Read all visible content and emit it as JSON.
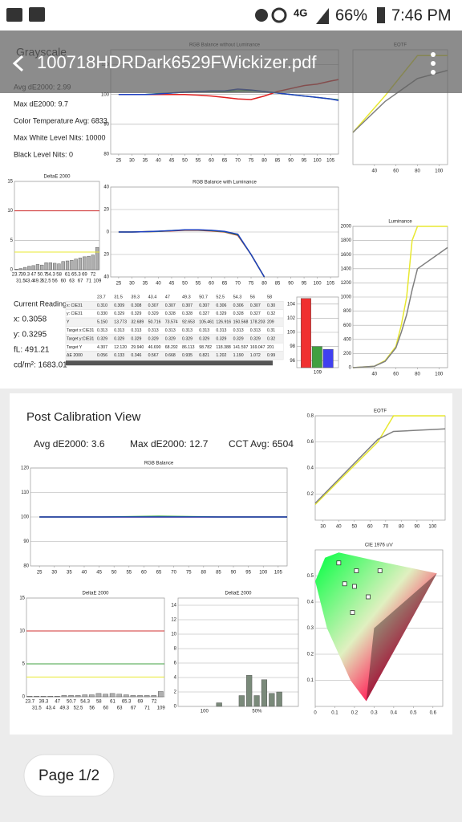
{
  "status": {
    "network": "4G",
    "battery": "66%",
    "time": "7:46 PM"
  },
  "toolbar": {
    "title": "100718HDRDark6529FWickizer.pdf"
  },
  "page1": {
    "title": "Grayscale",
    "stats": [
      "Avg dE2000: 2.99",
      "Max dE2000: 9.7",
      "Color Temperature Avg: 6833",
      "Max White Level Nits: 10000",
      "Black Level Nits: 0"
    ],
    "reading": [
      "Current Reading",
      "x: 0.3058",
      "y: 0.3295",
      "fL: 491.21",
      "cd/m²: 1683.01"
    ],
    "table": {
      "header": [
        "23.7",
        "31.5",
        "39.3",
        "43.4",
        "47",
        "49.3",
        "50.7",
        "52.5",
        "54.3",
        "56",
        "58"
      ],
      "rows": [
        [
          "x: CIE31",
          "0.310",
          "0.309",
          "0.308",
          "0.307",
          "0.307",
          "0.307",
          "0.307",
          "0.306",
          "0.306",
          "0.307",
          "0.30"
        ],
        [
          "y: CIE31",
          "0.330",
          "0.329",
          "0.329",
          "0.329",
          "0.328",
          "0.328",
          "0.327",
          "0.329",
          "0.328",
          "0.327",
          "0.32"
        ],
        [
          "Y",
          "5.150",
          "13.773",
          "32.689",
          "50.716",
          "73.574",
          "92.653",
          "105.461",
          "126.916",
          "150.568",
          "178.203",
          "209"
        ],
        [
          "Target x:CIE31",
          "0.313",
          "0.313",
          "0.313",
          "0.313",
          "0.313",
          "0.313",
          "0.313",
          "0.313",
          "0.313",
          "0.313",
          "0.31"
        ],
        [
          "Target y:CIE31",
          "0.329",
          "0.329",
          "0.329",
          "0.329",
          "0.329",
          "0.329",
          "0.329",
          "0.329",
          "0.329",
          "0.329",
          "0.32"
        ],
        [
          "Target Y",
          "4.307",
          "12.120",
          "29.940",
          "46.690",
          "68.292",
          "86.113",
          "98.782",
          "118.388",
          "141.597",
          "169.047",
          "201"
        ],
        [
          "ΔE 2000",
          "0.056",
          "0.133",
          "0.346",
          "0.567",
          "0.668",
          "0.935",
          "0.821",
          "1.202",
          "1.190",
          "1.072",
          "0.99"
        ]
      ]
    },
    "charts": [
      {
        "title": "RGB Balance without Luminance",
        "ylim": [
          80,
          115
        ],
        "yticks": [
          80,
          90,
          100,
          110
        ],
        "xlim": [
          22,
          108
        ],
        "xticks": [
          25,
          30,
          35,
          40,
          45,
          50,
          55,
          60,
          65,
          70,
          75,
          80,
          85,
          90,
          95,
          100,
          105
        ],
        "x": [
          25,
          30,
          35,
          40,
          45,
          50,
          55,
          60,
          65,
          70,
          75,
          80,
          85,
          90,
          95,
          100,
          105,
          108
        ],
        "series": [
          {
            "color": "#e02020",
            "values": [
              100,
              100,
              100,
              100,
              100,
              100,
              99.8,
              99.5,
              99,
              98.5,
              98.3,
              99.5,
              101,
              102,
              103,
              103.5,
              104.5,
              105
            ]
          },
          {
            "color": "#30a030",
            "values": [
              100,
              100,
              100,
              100.3,
              100.5,
              100.8,
              101,
              101,
              101,
              101.2,
              101.3,
              101,
              100.5,
              100,
              99.5,
              99,
              98.5,
              98.2
            ]
          },
          {
            "color": "#2040c0",
            "values": [
              100,
              100,
              100,
              100.2,
              100.5,
              100.8,
              101,
              101.2,
              101.2,
              101.8,
              101.5,
              101,
              100.5,
              100,
              99.5,
              99,
              98.5,
              98
            ]
          }
        ]
      },
      {
        "title": "RGB Balance with Luminance",
        "ylim": [
          -40,
          40
        ],
        "yticks": [
          40,
          20,
          0,
          {
            "value": -20,
            "label": "20"
          },
          {
            "value": -40,
            "label": "40"
          }
        ],
        "xlim": [
          22,
          108
        ],
        "xticks": [
          25,
          30,
          35,
          40,
          45,
          50,
          55,
          60,
          65,
          70,
          75,
          80,
          85,
          90,
          95,
          100,
          105
        ],
        "x": [
          25,
          30,
          35,
          40,
          45,
          50,
          55,
          60,
          65,
          70,
          75,
          80
        ],
        "series": [
          {
            "color": "#e02020",
            "values": [
              0,
              0,
              0.3,
              0.5,
              1,
              1.5,
              1.5,
              1,
              0,
              -3,
              -20,
              -40
            ]
          },
          {
            "color": "#30a030",
            "values": [
              0,
              0,
              0.3,
              0.6,
              1.2,
              1.8,
              1.8,
              1.3,
              0.3,
              -2.5,
              -20,
              -40
            ]
          },
          {
            "color": "#2040c0",
            "values": [
              0,
              0,
              0.3,
              0.7,
              1.3,
              2,
              2,
              1.5,
              0.5,
              -2,
              -20,
              -40
            ]
          }
        ]
      },
      {
        "title": "DeltaE 2000",
        "ylim": [
          0,
          15
        ],
        "yticks": [
          0,
          5,
          10,
          15
        ],
        "stagger": true,
        "categories": [
          "23.7",
          "31.5",
          "39.3",
          "43.4",
          "47",
          "49.3",
          "50.7",
          "52.5",
          "54.3",
          "56",
          "58",
          "60",
          "61",
          "63",
          "65.3",
          "67",
          "69",
          "71",
          "72",
          "109"
        ],
        "limits": [
          {
            "value": 10,
            "color": "#d03030"
          },
          {
            "value": 3,
            "color": "#e8e830"
          }
        ],
        "bars": [
          {
            "color": "#b0b0b0",
            "values": [
              0.1,
              0.2,
              0.4,
              0.6,
              0.7,
              0.9,
              0.8,
              1.2,
              1.2,
              1.1,
              1,
              1.4,
              1.5,
              1.6,
              1.8,
              2,
              2.2,
              2.3,
              2.5,
              3.8
            ]
          }
        ]
      },
      {
        "title": "EOTF",
        "ylim": [
          0,
          1
        ],
        "xlim": [
          20,
          108
        ],
        "xticks": [
          40,
          60,
          80,
          100
        ],
        "x": [
          20,
          50,
          80,
          108
        ],
        "series": [
          {
            "color": "#e8e830",
            "values": [
              0.28,
              0.6,
              0.95,
              0.95
            ]
          },
          {
            "color": "#808080",
            "values": [
              0.28,
              0.55,
              0.75,
              0.82
            ]
          }
        ]
      },
      {
        "title": "Luminance",
        "ylim": [
          0,
          2000
        ],
        "yticks": [
          0,
          200,
          400,
          600,
          800,
          1000,
          1200,
          1400,
          1600,
          1800,
          2000
        ],
        "xlim": [
          20,
          108
        ],
        "xticks": [
          40,
          60,
          80,
          100
        ],
        "x": [
          20,
          40,
          50,
          60,
          65,
          70,
          75,
          80,
          108
        ],
        "series": [
          {
            "color": "#e8e830",
            "values": [
              0,
              20,
              100,
              300,
              600,
              1000,
              1800,
              2000,
              2000
            ]
          },
          {
            "color": "#808080",
            "values": [
              0,
              20,
              90,
              280,
              500,
              750,
              1100,
              1400,
              1700
            ]
          }
        ]
      },
      {
        "ylim": [
          95,
          105
        ],
        "yticks": [
          96,
          98,
          100,
          102,
          104
        ],
        "categories": [
          "109"
        ],
        "bars": [
          {
            "color": "#f03030",
            "values": [
              104.8
            ]
          },
          {
            "color": "#40a040",
            "values": [
              98
            ]
          },
          {
            "color": "#4040f0",
            "values": [
              97.6
            ]
          }
        ]
      }
    ]
  },
  "page2": {
    "title": "Post Calibration View",
    "stats": [
      "Avg dE2000: 3.6",
      "Max dE2000: 12.7",
      "CCT Avg: 6504"
    ],
    "charts": [
      {
        "title": "RGB Balance",
        "ylim": [
          80,
          120
        ],
        "yticks": [
          80,
          90,
          100,
          110,
          120
        ],
        "xlim": [
          22,
          108
        ],
        "xticks": [
          25,
          30,
          35,
          40,
          45,
          50,
          55,
          60,
          65,
          70,
          75,
          80,
          85,
          90,
          95,
          100,
          105
        ],
        "x": [
          25,
          45,
          65,
          85,
          108
        ],
        "series": [
          {
            "color": "#e02020",
            "values": [
              100,
              100,
              100,
              100,
              100
            ]
          },
          {
            "color": "#30a030",
            "values": [
              100,
              100,
              100.3,
              100,
              100
            ]
          },
          {
            "color": "#2040c0",
            "values": [
              100,
              100,
              100,
              100,
              100
            ]
          }
        ]
      },
      {
        "title": "EOTF",
        "ylim": [
          0,
          0.8
        ],
        "yticks": [
          0.2,
          0.4,
          0.6,
          0.8
        ],
        "xlim": [
          25,
          108
        ],
        "xticks": [
          30,
          40,
          50,
          60,
          70,
          80,
          90,
          100
        ],
        "x": [
          25,
          65,
          75,
          108
        ],
        "series": [
          {
            "color": "#e8e830",
            "values": [
              0.12,
              0.6,
              0.8,
              0.8
            ]
          },
          {
            "color": "#808080",
            "values": [
              0.13,
              0.62,
              0.68,
              0.7
            ]
          }
        ]
      },
      {
        "title": "DeltaE 2000",
        "ylim": [
          0,
          15
        ],
        "yticks": [
          0,
          5,
          10,
          15
        ],
        "stagger": true,
        "categories": [
          "23.7",
          "31.5",
          "39.3",
          "43.4",
          "47",
          "49.3",
          "50.7",
          "52.5",
          "54.3",
          "56",
          "58",
          "60",
          "61",
          "63",
          "65.3",
          "67",
          "69",
          "71",
          "72",
          "109"
        ],
        "limits": [
          {
            "value": 10,
            "color": "#d03030"
          },
          {
            "value": 5,
            "color": "#40a040"
          },
          {
            "value": 3,
            "color": "#e8e830"
          }
        ],
        "bars": [
          {
            "color": "#b0b0b0",
            "values": [
              0.1,
              0.1,
              0.1,
              0.1,
              0.1,
              0.2,
              0.2,
              0.2,
              0.3,
              0.3,
              0.5,
              0.4,
              0.5,
              0.4,
              0.3,
              0.2,
              0.2,
              0.2,
              0.2,
              0.8
            ]
          }
        ]
      },
      {
        "title": "DeltaE 2000",
        "ylim": [
          0,
          15
        ],
        "yticks": [
          0,
          2,
          4,
          6,
          8,
          10,
          12,
          14
        ],
        "categories": [
          null,
          null,
          null,
          "100",
          null,
          null,
          null,
          null,
          null,
          null,
          "50%",
          null,
          null,
          null,
          null,
          null
        ],
        "bars": [
          {
            "color": "#7a8a7a",
            "values": [
              null,
              null,
              null,
              null,
              null,
              0.5,
              null,
              null,
              1.5,
              4.3,
              1.5,
              3.7,
              1.8,
              2,
              null,
              null
            ]
          }
        ]
      },
      {
        "title": "CIE 1976 u'v'",
        "ylim": [
          0,
          0.6
        ],
        "yticks": [
          0.1,
          0.2,
          0.3,
          0.4,
          0.5
        ],
        "xlim": [
          0,
          0.65
        ],
        "xticks": [
          0,
          0.1,
          0.2,
          0.3,
          0.4,
          0.5,
          0.6
        ],
        "points": {
          "x": [
            0.12,
            0.21,
            0.2,
            0.33,
            0.27,
            0.19,
            0.15
          ],
          "y": [
            0.55,
            0.52,
            0.46,
            0.52,
            0.42,
            0.36,
            0.47
          ]
        }
      }
    ]
  },
  "footer": {
    "page": "Page 1/2"
  }
}
